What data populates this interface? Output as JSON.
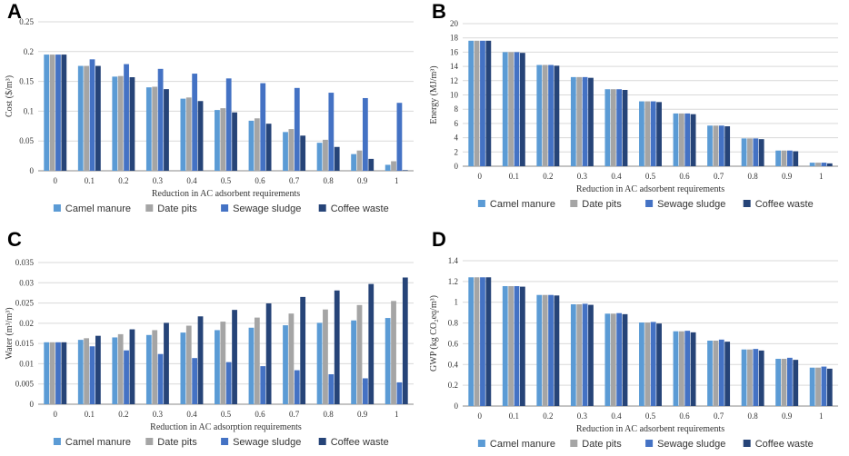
{
  "colors": {
    "camel": "#5b9bd5",
    "date": "#a5a5a5",
    "sewage": "#4472c4",
    "coffee": "#264478",
    "grid": "#d9d9d9",
    "axis": "#888888"
  },
  "chart_data": [
    {
      "panel": "A",
      "type": "bar",
      "title": "",
      "xlabel": "Reduction in AC adsorbent requirements",
      "ylabel": "Cost ($/m³)",
      "ylim": [
        0,
        0.25
      ],
      "yticks": [
        "0",
        "0.05",
        "0.1",
        "0.15",
        "0.2",
        "0.25"
      ],
      "categories": [
        "0",
        "0.1",
        "0.2",
        "0.3",
        "0.4",
        "0.5",
        "0.6",
        "0.7",
        "0.8",
        "0.9",
        "1"
      ],
      "series": [
        {
          "name": "Camel manure",
          "values": [
            0.195,
            0.176,
            0.158,
            0.14,
            0.121,
            0.102,
            0.084,
            0.065,
            0.047,
            0.028,
            0.01
          ]
        },
        {
          "name": "Date pits",
          "values": [
            0.195,
            0.176,
            0.159,
            0.141,
            0.123,
            0.105,
            0.088,
            0.07,
            0.052,
            0.034,
            0.016
          ]
        },
        {
          "name": "Sewage sludge",
          "values": [
            0.195,
            0.187,
            0.179,
            0.171,
            0.163,
            0.155,
            0.147,
            0.139,
            0.131,
            0.122,
            0.114
          ]
        },
        {
          "name": "Coffee waste",
          "values": [
            0.195,
            0.176,
            0.157,
            0.137,
            0.117,
            0.098,
            0.079,
            0.059,
            0.04,
            0.02,
            0.001
          ]
        }
      ]
    },
    {
      "panel": "B",
      "type": "bar",
      "title": "",
      "xlabel": "Reduction in AC adsorbent requirements",
      "ylabel": "Energy (MJ/m³)",
      "ylim": [
        0,
        20
      ],
      "yticks": [
        "0",
        "2",
        "4",
        "6",
        "8",
        "10",
        "12",
        "14",
        "16",
        "18",
        "20"
      ],
      "categories": [
        "0",
        "0.1",
        "0.2",
        "0.3",
        "0.4",
        "0.5",
        "0.6",
        "0.7",
        "0.8",
        "0.9",
        "1"
      ],
      "series": [
        {
          "name": "Camel manure",
          "values": [
            17.6,
            16.0,
            14.2,
            12.5,
            10.8,
            9.1,
            7.4,
            5.7,
            3.9,
            2.2,
            0.5
          ]
        },
        {
          "name": "Date pits",
          "values": [
            17.6,
            16.0,
            14.2,
            12.5,
            10.8,
            9.1,
            7.4,
            5.7,
            3.9,
            2.2,
            0.5
          ]
        },
        {
          "name": "Sewage sludge",
          "values": [
            17.6,
            16.0,
            14.2,
            12.5,
            10.8,
            9.1,
            7.4,
            5.7,
            3.9,
            2.2,
            0.5
          ]
        },
        {
          "name": "Coffee waste",
          "values": [
            17.6,
            15.9,
            14.1,
            12.4,
            10.7,
            9.0,
            7.3,
            5.6,
            3.8,
            2.1,
            0.4
          ]
        }
      ]
    },
    {
      "panel": "C",
      "type": "bar",
      "title": "",
      "xlabel": "Reduction in AC adsorption requirements",
      "ylabel": "Water (m³/m³)",
      "ylim": [
        0,
        0.035
      ],
      "yticks": [
        "0",
        "0.005",
        "0.01",
        "0.015",
        "0.02",
        "0.025",
        "0.03",
        "0.035"
      ],
      "categories": [
        "0",
        "0.1",
        "0.2",
        "0.3",
        "0.4",
        "0.5",
        "0.6",
        "0.7",
        "0.8",
        "0.9",
        "1"
      ],
      "series": [
        {
          "name": "Camel manure",
          "values": [
            0.0153,
            0.0159,
            0.0165,
            0.0171,
            0.0177,
            0.0183,
            0.0189,
            0.0195,
            0.0201,
            0.0207,
            0.0213
          ]
        },
        {
          "name": "Date pits",
          "values": [
            0.0153,
            0.0163,
            0.0173,
            0.0183,
            0.0194,
            0.0204,
            0.0214,
            0.0224,
            0.0234,
            0.0245,
            0.0255
          ]
        },
        {
          "name": "Sewage sludge",
          "values": [
            0.0153,
            0.0143,
            0.0133,
            0.0124,
            0.0114,
            0.0104,
            0.0094,
            0.0084,
            0.0074,
            0.0064,
            0.0054
          ]
        },
        {
          "name": "Coffee waste",
          "values": [
            0.0153,
            0.0169,
            0.0185,
            0.0201,
            0.0217,
            0.0233,
            0.0249,
            0.0265,
            0.0281,
            0.0297,
            0.0313
          ]
        }
      ]
    },
    {
      "panel": "D",
      "type": "bar",
      "title": "",
      "xlabel": "Reduction in AC adsorbent requirements",
      "ylabel": "GWP (kg CO₂eq/m³)",
      "ylim": [
        0,
        1.4
      ],
      "yticks": [
        "0",
        "0.2",
        "0.4",
        "0.6",
        "0.8",
        "1",
        "1.2",
        "1.4"
      ],
      "categories": [
        "0",
        "0.1",
        "0.2",
        "0.3",
        "0.4",
        "0.5",
        "0.6",
        "0.7",
        "0.8",
        "0.9",
        "1"
      ],
      "series": [
        {
          "name": "Camel manure",
          "values": [
            1.24,
            1.155,
            1.07,
            0.98,
            0.89,
            0.805,
            0.72,
            0.63,
            0.545,
            0.455,
            0.37
          ]
        },
        {
          "name": "Date pits",
          "values": [
            1.24,
            1.155,
            1.07,
            0.98,
            0.89,
            0.805,
            0.72,
            0.63,
            0.545,
            0.455,
            0.37
          ]
        },
        {
          "name": "Sewage sludge",
          "values": [
            1.24,
            1.155,
            1.07,
            0.985,
            0.895,
            0.81,
            0.725,
            0.64,
            0.55,
            0.465,
            0.38
          ]
        },
        {
          "name": "Coffee waste",
          "values": [
            1.24,
            1.15,
            1.065,
            0.975,
            0.885,
            0.795,
            0.71,
            0.62,
            0.535,
            0.445,
            0.36
          ]
        }
      ]
    }
  ]
}
